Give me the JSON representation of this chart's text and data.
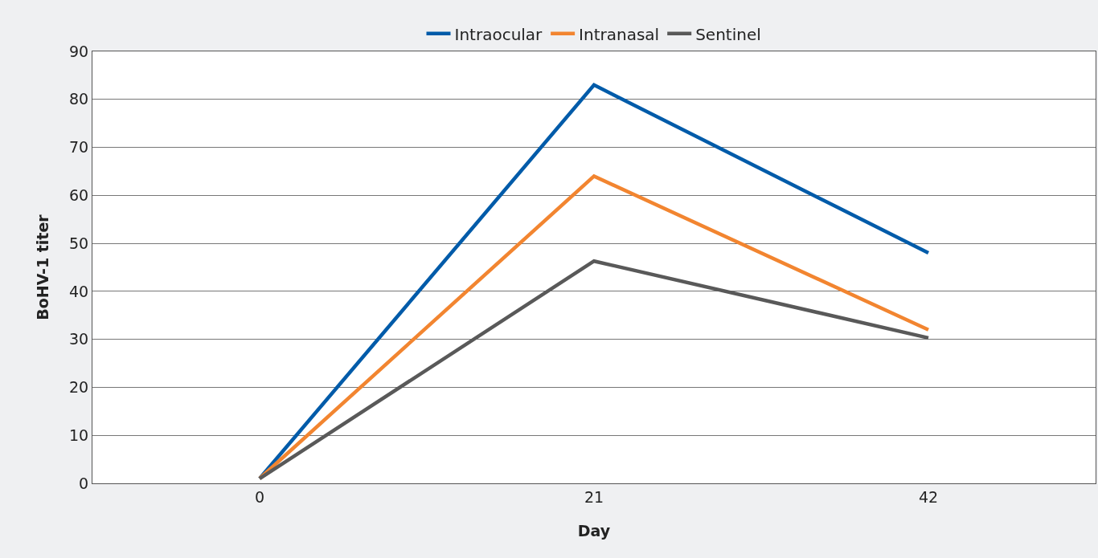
{
  "chart_data": {
    "type": "line",
    "xlabel": "Day",
    "ylabel": "BoHV-1 titer",
    "categories": [
      "0",
      "21",
      "42"
    ],
    "series": [
      {
        "name": "Intraocular",
        "color": "#005ba9",
        "values": [
          1,
          83,
          48
        ]
      },
      {
        "name": "Intranasal",
        "color": "#f28530",
        "values": [
          1,
          64,
          32
        ]
      },
      {
        "name": "Sentinel",
        "color": "#595959",
        "values": [
          1,
          46.3,
          30.3
        ]
      }
    ],
    "ylim": [
      0,
      90
    ],
    "yticks": [
      0,
      10,
      20,
      30,
      40,
      50,
      60,
      70,
      80,
      90
    ],
    "grid": "y",
    "legend": "top",
    "marker": "none",
    "line_style": "solid"
  }
}
